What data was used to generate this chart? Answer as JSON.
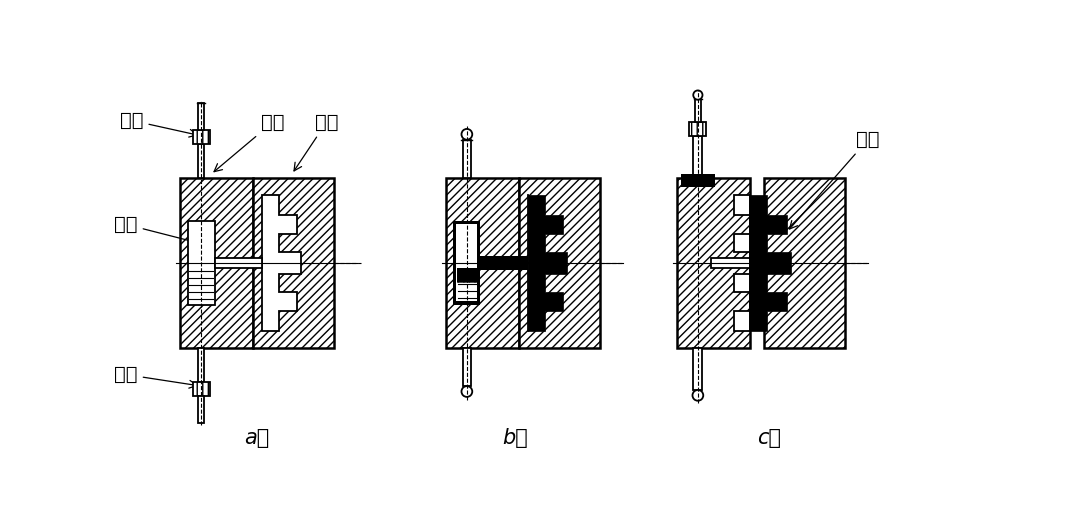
{
  "bg_color": "#ffffff",
  "label_a": "a）",
  "label_b": "b）",
  "label_c": "c）",
  "label_huosai_top": "活塞",
  "label_yashi": "压室",
  "label_huosai_bot": "活塞",
  "label_dingxing": "定型",
  "label_dongxing": "动型",
  "label_zhujian": "铸件",
  "font_size": 14
}
